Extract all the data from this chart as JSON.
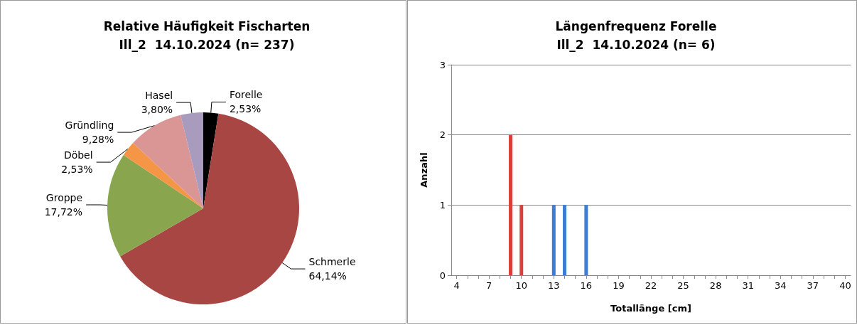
{
  "chart_data": [
    {
      "type": "pie",
      "title": "Relative Häufigkeit Fischarten\nIll_2  14.10.2024 (n= 237)",
      "categories": [
        "Forelle",
        "Schmerle",
        "Groppe",
        "Döbel",
        "Gründling",
        "Hasel"
      ],
      "values": [
        2.53,
        64.14,
        17.72,
        2.53,
        9.28,
        3.8
      ],
      "value_labels": [
        "2,53%",
        "64,14%",
        "17,72%",
        "2,53%",
        "9,28%",
        "3,80%"
      ],
      "colors": [
        "#000000",
        "#a84644",
        "#89a54e",
        "#f59647",
        "#d99694",
        "#a99bbd"
      ],
      "legend": false
    },
    {
      "type": "bar",
      "title": "Längenfrequenz Forelle\nIll_2  14.10.2024 (n= 6)",
      "xlabel": "Totallänge [cm]",
      "ylabel": "Anzahl",
      "categories": [
        "4",
        null,
        null,
        "7",
        null,
        null,
        "10",
        null,
        null,
        "13",
        null,
        null,
        "16",
        null,
        null,
        "19",
        null,
        null,
        "22",
        null,
        null,
        "25",
        null,
        null,
        "28",
        null,
        null,
        "31",
        null,
        null,
        "34",
        null,
        null,
        "37",
        null,
        null,
        "40"
      ],
      "values": [
        0,
        0,
        0,
        0,
        0,
        2,
        1,
        0,
        0,
        1,
        1,
        0,
        1,
        0,
        0,
        0,
        0,
        0,
        0,
        0,
        0,
        0,
        0,
        0,
        0,
        0,
        0,
        0,
        0,
        0,
        0,
        0,
        0,
        0,
        0,
        0,
        0
      ],
      "colors": [
        "#d9403a",
        "#d9403a",
        "#d9403a",
        "#d9403a",
        "#d9403a",
        "#d9403a",
        "#d9403a",
        "#3a7fd5",
        "#3a7fd5",
        "#3a7fd5",
        "#3a7fd5",
        "#3a7fd5",
        "#3a7fd5",
        "#3a7fd5",
        "#3a7fd5",
        "#3a7fd5",
        "#3a7fd5",
        "#3a7fd5",
        "#3a7fd5",
        "#3a7fd5",
        "#3a7fd5",
        "#3a7fd5",
        "#3a7fd5",
        "#3a7fd5",
        "#3a7fd5",
        "#3a7fd5",
        "#3a7fd5",
        "#3a7fd5",
        "#3a7fd5",
        "#3a7fd5",
        "#3a7fd5",
        "#3a7fd5",
        "#3a7fd5",
        "#3a7fd5",
        "#3a7fd5",
        "#3a7fd5",
        "#3a7fd5"
      ],
      "ylim": [
        0,
        3
      ],
      "yticks": [
        0,
        1,
        2,
        3
      ],
      "grid": "y",
      "legend": false
    }
  ]
}
